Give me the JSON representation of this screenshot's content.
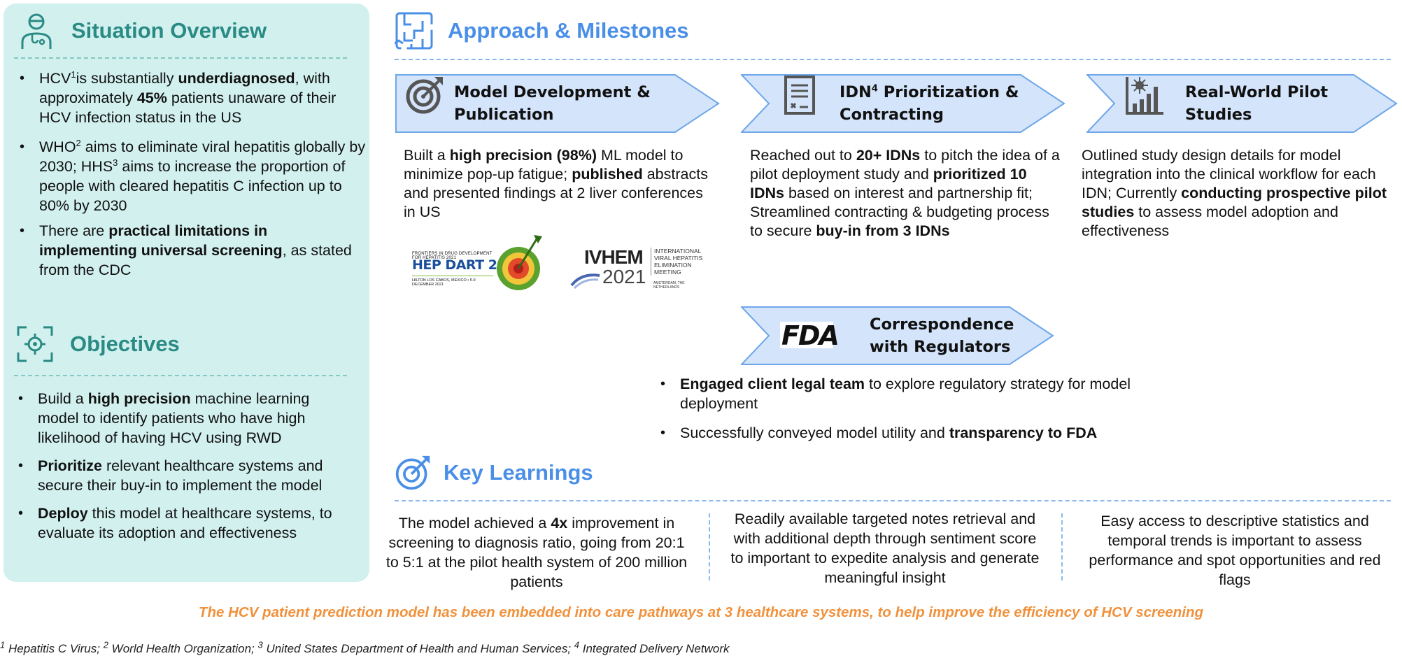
{
  "situation": {
    "title": "Situation Overview",
    "bullets": [
      {
        "parts": [
          [
            "HCV",
            ""
          ],
          [
            "1",
            "sup"
          ],
          [
            "is substantially ",
            ""
          ],
          [
            "underdiagnosed",
            "b"
          ],
          [
            ", with approximately ",
            ""
          ],
          [
            "45%",
            "b"
          ],
          [
            "  patients unaware of their HCV infection status in the US",
            ""
          ]
        ]
      },
      {
        "parts": [
          [
            "WHO",
            ""
          ],
          [
            "2",
            "sup"
          ],
          [
            " aims to eliminate viral hepatitis globally by 2030; HHS",
            ""
          ],
          [
            "3",
            "sup"
          ],
          [
            " aims to increase the proportion of people with cleared hepatitis C infection up to 80% by 2030",
            ""
          ]
        ]
      },
      {
        "parts": [
          [
            "There are  ",
            ""
          ],
          [
            "practical limitations in implementing  universal screening",
            "b"
          ],
          [
            ", as stated from the CDC",
            ""
          ]
        ]
      }
    ]
  },
  "objectives": {
    "title": "Objectives",
    "bullets": [
      {
        "parts": [
          [
            "Build a ",
            ""
          ],
          [
            "high precision",
            "b"
          ],
          [
            " machine learning model to identify patients who have high likelihood of having HCV using RWD",
            ""
          ]
        ]
      },
      {
        "parts": [
          [
            "Prioritize",
            "b"
          ],
          [
            " relevant healthcare systems and secure their buy-in to implement the model",
            ""
          ]
        ]
      },
      {
        "parts": [
          [
            "Deploy",
            "b"
          ],
          [
            " this model at healthcare systems, to evaluate its adoption and effectiveness",
            ""
          ]
        ]
      }
    ]
  },
  "approach": {
    "title": "Approach & Milestones",
    "steps": [
      {
        "title_line1": "Model Development &",
        "title_line2": "Publication",
        "parts": [
          [
            "Built a ",
            ""
          ],
          [
            "high precision (98%)",
            "b"
          ],
          [
            " ML model to minimize pop-up fatigue; ",
            ""
          ],
          [
            "published",
            "b"
          ],
          [
            " abstracts and presented findings at 2 liver conferences in US",
            ""
          ]
        ]
      },
      {
        "title_line1_a": "IDN",
        "title_sup": "4",
        "title_line1_b": " Prioritization &",
        "title_line2": "Contracting",
        "parts": [
          [
            "Reached out to ",
            ""
          ],
          [
            "20+ IDNs",
            "b"
          ],
          [
            " to pitch the idea of a pilot deployment study and ",
            ""
          ],
          [
            "prioritized 10 IDNs",
            "b"
          ],
          [
            " based on interest and partnership fit; Streamlined contracting & budgeting process to secure ",
            ""
          ],
          [
            "buy-in from 3 IDNs",
            "b"
          ]
        ]
      },
      {
        "title_line1": "Real-World Pilot",
        "title_line2": "Studies",
        "parts": [
          [
            "Outlined study design details for model integration into the clinical workflow for each IDN; Currently ",
            ""
          ],
          [
            "conducting prospective pilot studies",
            "b"
          ],
          [
            " to assess model adoption and effectiveness",
            ""
          ]
        ]
      }
    ],
    "regulators": {
      "title_line1": "Correspondence",
      "title_line2": "with Regulators",
      "fda_logo": "FDA",
      "bullets": [
        {
          "parts": [
            [
              "Engaged client legal team",
              "b"
            ],
            [
              " to explore regulatory strategy for model deployment",
              ""
            ]
          ]
        },
        {
          "parts": [
            [
              "Successfully conveyed model utility and ",
              ""
            ],
            [
              "transparency to FDA",
              "b"
            ]
          ]
        }
      ]
    },
    "logos": {
      "hepdart_top": "FRONTIERS IN DRUG DEVELOPMENT FOR HEPATITIS 2021",
      "hepdart_main": "HEP DART 2021",
      "hepdart_bottom": "HILTON LOS CABOS, MEXICO  •  5-9 DECEMBER 2021",
      "ivhem_main": "IVHEM",
      "ivhem_year": "2021",
      "ivhem_side1": "INTERNATIONAL",
      "ivhem_side2": "VIRAL HEPATITIS",
      "ivhem_side3": "ELIMINATION",
      "ivhem_side4": "MEETING",
      "ivhem_bottom": "AMSTERDAM, THE NETHERLANDS"
    }
  },
  "learnings": {
    "title": "Key Learnings",
    "items": [
      {
        "parts": [
          [
            "The model achieved a ",
            ""
          ],
          [
            "4x",
            "b"
          ],
          [
            " improvement in screening to diagnosis ratio, going from 20:1 to 5:1 at the pilot health system of 200 million patients",
            ""
          ]
        ]
      },
      {
        "parts": [
          [
            "Readily available targeted notes retrieval and with additional depth through sentiment score to important to expedite analysis and generate meaningful insight",
            ""
          ]
        ]
      },
      {
        "parts": [
          [
            "Easy access to descriptive statistics and temporal trends is important to assess performance and spot opportunities and red flags",
            ""
          ]
        ]
      }
    ]
  },
  "conclusion": "The HCV patient prediction model has been embedded into care pathways at 3 healthcare systems, to help improve the efficiency of HCV screening",
  "footnotes": [
    {
      "num": "1",
      "text": " Hepatitis C Virus; "
    },
    {
      "num": "2",
      "text": " World Health Organization; "
    },
    {
      "num": "3",
      "text": " United States Department of Health and Human Services; "
    },
    {
      "num": "4",
      "text": " Integrated Delivery Network"
    }
  ],
  "colors": {
    "teal": "#2a8a84",
    "panel": "#d1f0ee",
    "blue": "#4a8fe7",
    "chevron_fill": "#d4e5fb",
    "chevron_stroke": "#6ea6ea",
    "orange": "#f0913c"
  }
}
